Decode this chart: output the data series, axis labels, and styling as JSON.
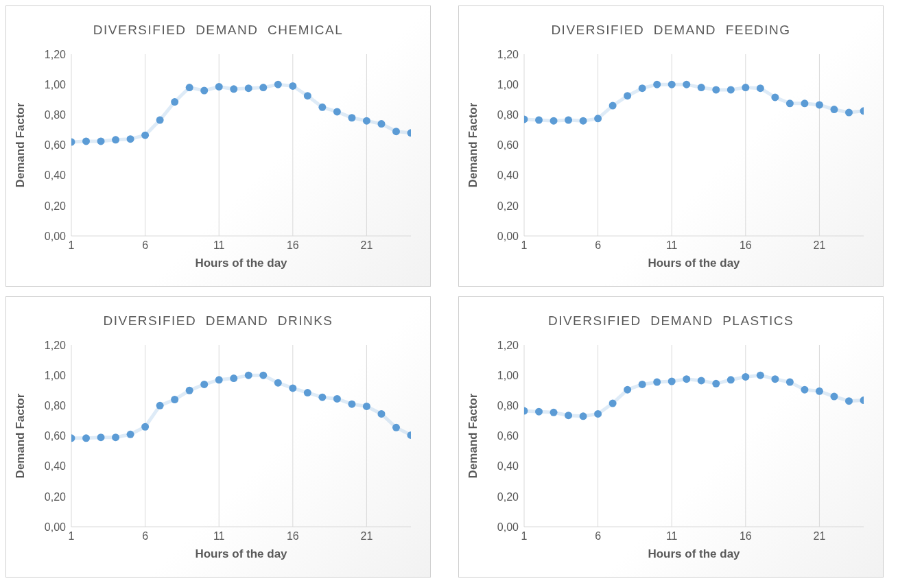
{
  "chart_data": [
    {
      "type": "line",
      "title": "DIVERSIFIED  DEMAND  CHEMICAL",
      "xlabel": "Hours of the day",
      "ylabel": "Demand Factor",
      "x": [
        1,
        2,
        3,
        4,
        5,
        6,
        7,
        8,
        9,
        10,
        11,
        12,
        13,
        14,
        15,
        16,
        17,
        18,
        19,
        20,
        21,
        22,
        23,
        24
      ],
      "series": [
        {
          "color": "#5b9bd5",
          "values": [
            0.62,
            0.625,
            0.625,
            0.635,
            0.64,
            0.665,
            0.765,
            0.885,
            0.98,
            0.96,
            0.985,
            0.97,
            0.975,
            0.98,
            1.0,
            0.99,
            0.925,
            0.85,
            0.82,
            0.78,
            0.76,
            0.74,
            0.69,
            0.68
          ]
        }
      ],
      "xlim": [
        1,
        24
      ],
      "xticks": [
        1,
        6,
        11,
        16,
        21
      ],
      "ylim": [
        0,
        1.2
      ],
      "yticks": [
        {
          "value": 0,
          "label": "0,00"
        },
        {
          "value": 0.2,
          "label": "0,20"
        },
        {
          "value": 0.4,
          "label": "0,40"
        },
        {
          "value": 0.6,
          "label": "0,60"
        },
        {
          "value": 0.8,
          "label": "0,80"
        },
        {
          "value": 1.0,
          "label": "1,00"
        },
        {
          "value": 1.2,
          "label": "1,20"
        }
      ],
      "grid": true,
      "marker": "circle",
      "line_style": "solid"
    },
    {
      "type": "line",
      "title": "DIVERSIFIED  DEMAND  FEEDING",
      "xlabel": "Hours of the day",
      "ylabel": "Demand Factor",
      "x": [
        1,
        2,
        3,
        4,
        5,
        6,
        7,
        8,
        9,
        10,
        11,
        12,
        13,
        14,
        15,
        16,
        17,
        18,
        19,
        20,
        21,
        22,
        23,
        24
      ],
      "series": [
        {
          "color": "#5b9bd5",
          "values": [
            0.77,
            0.765,
            0.76,
            0.765,
            0.76,
            0.775,
            0.86,
            0.925,
            0.975,
            1.0,
            1.0,
            1.0,
            0.98,
            0.965,
            0.965,
            0.98,
            0.975,
            0.915,
            0.875,
            0.875,
            0.865,
            0.835,
            0.815,
            0.825
          ]
        }
      ],
      "xlim": [
        1,
        24
      ],
      "xticks": [
        1,
        6,
        11,
        16,
        21
      ],
      "ylim": [
        0,
        1.2
      ],
      "yticks": [
        {
          "value": 0,
          "label": "0,00"
        },
        {
          "value": 0.2,
          "label": "0,20"
        },
        {
          "value": 0.4,
          "label": "0,40"
        },
        {
          "value": 0.6,
          "label": "0,60"
        },
        {
          "value": 0.8,
          "label": "0,80"
        },
        {
          "value": 1.0,
          "label": "1,00"
        },
        {
          "value": 1.2,
          "label": "1,20"
        }
      ],
      "grid": true,
      "marker": "circle",
      "line_style": "solid"
    },
    {
      "type": "line",
      "title": "DIVERSIFIED  DEMAND  DRINKS",
      "xlabel": "Hours of the day",
      "ylabel": "Demand Factor",
      "x": [
        1,
        2,
        3,
        4,
        5,
        6,
        7,
        8,
        9,
        10,
        11,
        12,
        13,
        14,
        15,
        16,
        17,
        18,
        19,
        20,
        21,
        22,
        23,
        24
      ],
      "series": [
        {
          "color": "#5b9bd5",
          "values": [
            0.585,
            0.585,
            0.59,
            0.59,
            0.61,
            0.66,
            0.8,
            0.84,
            0.9,
            0.94,
            0.97,
            0.98,
            1.0,
            1.0,
            0.95,
            0.915,
            0.885,
            0.855,
            0.845,
            0.81,
            0.795,
            0.745,
            0.655,
            0.605
          ]
        }
      ],
      "xlim": [
        1,
        24
      ],
      "xticks": [
        1,
        6,
        11,
        16,
        21
      ],
      "ylim": [
        0,
        1.2
      ],
      "yticks": [
        {
          "value": 0,
          "label": "0,00"
        },
        {
          "value": 0.2,
          "label": "0,20"
        },
        {
          "value": 0.4,
          "label": "0,40"
        },
        {
          "value": 0.6,
          "label": "0,60"
        },
        {
          "value": 0.8,
          "label": "0,80"
        },
        {
          "value": 1.0,
          "label": "1,00"
        },
        {
          "value": 1.2,
          "label": "1,20"
        }
      ],
      "grid": true,
      "marker": "circle",
      "line_style": "solid"
    },
    {
      "type": "line",
      "title": "DIVERSIFIED  DEMAND  PLASTICS",
      "xlabel": "Hours of the day",
      "ylabel": "Demand Factor",
      "x": [
        1,
        2,
        3,
        4,
        5,
        6,
        7,
        8,
        9,
        10,
        11,
        12,
        13,
        14,
        15,
        16,
        17,
        18,
        19,
        20,
        21,
        22,
        23,
        24
      ],
      "series": [
        {
          "color": "#5b9bd5",
          "values": [
            0.765,
            0.76,
            0.755,
            0.735,
            0.73,
            0.745,
            0.815,
            0.905,
            0.94,
            0.955,
            0.96,
            0.975,
            0.965,
            0.945,
            0.97,
            0.99,
            1.0,
            0.975,
            0.955,
            0.905,
            0.895,
            0.86,
            0.83,
            0.835
          ]
        }
      ],
      "xlim": [
        1,
        24
      ],
      "xticks": [
        1,
        6,
        11,
        16,
        21
      ],
      "ylim": [
        0,
        1.2
      ],
      "yticks": [
        {
          "value": 0,
          "label": "0,00"
        },
        {
          "value": 0.2,
          "label": "0,20"
        },
        {
          "value": 0.4,
          "label": "0,40"
        },
        {
          "value": 0.6,
          "label": "0,60"
        },
        {
          "value": 0.8,
          "label": "0,80"
        },
        {
          "value": 1.0,
          "label": "1,00"
        },
        {
          "value": 1.2,
          "label": "1,20"
        }
      ],
      "grid": true,
      "marker": "circle",
      "line_style": "solid"
    }
  ]
}
